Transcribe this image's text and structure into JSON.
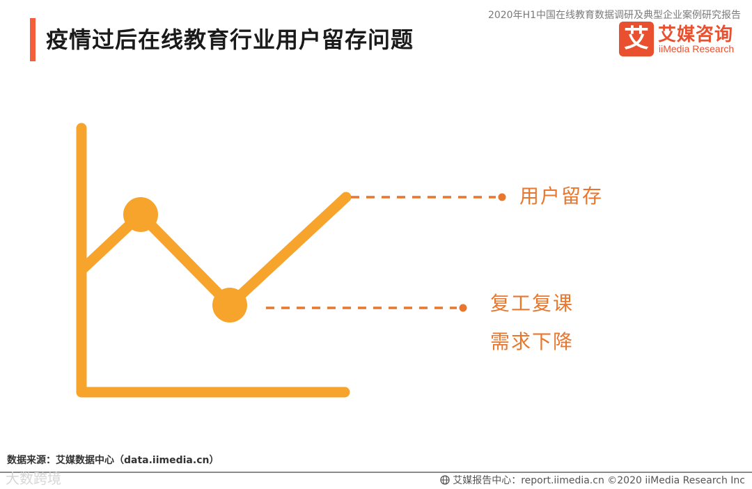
{
  "header": {
    "title": "疫情过后在线教育行业用户留存问题",
    "report_title": "2020年H1中国在线教育数据调研及典型企业案例研究报告"
  },
  "logo": {
    "mark": "艾",
    "name_cn": "艾媒咨询",
    "name_en": "iiMedia Research"
  },
  "diagram": {
    "labels": {
      "retention": "用户留存",
      "demand_line1": "复工复课",
      "demand_line2": "需求下降"
    },
    "colors": {
      "line": "#f6a42c",
      "accent": "#e8772d"
    }
  },
  "footer": {
    "source": "数据来源：艾媒数据中心（data.iimedia.cn）",
    "watermark": "大数跨境",
    "report_site": "艾媒报告中心：report.iimedia.cn   ©2020  iiMedia Research  Inc"
  }
}
